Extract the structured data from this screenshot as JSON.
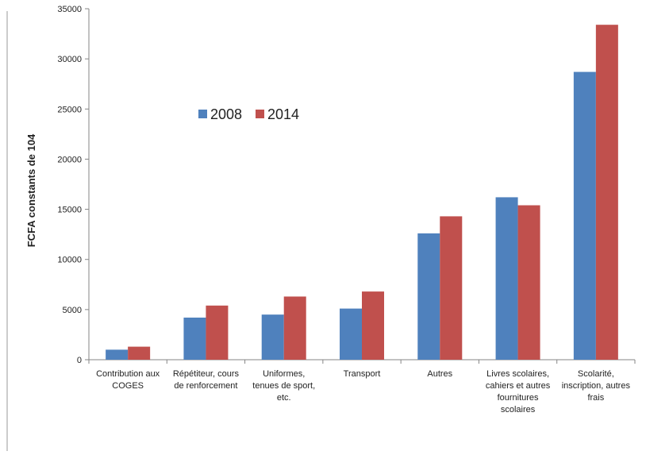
{
  "chart_data": {
    "type": "bar",
    "title": "",
    "xlabel": "",
    "ylabel": "FCFA constants de 104",
    "ylim": [
      0,
      35000
    ],
    "yticks": [
      "0",
      "5000",
      "10000",
      "15000",
      "20000",
      "25000",
      "30000",
      "35000"
    ],
    "categories": [
      [
        "Contribution aux",
        "COGES"
      ],
      [
        "Répétiteur, cours",
        "de renforcement"
      ],
      [
        "Uniformes,",
        "tenues de sport,",
        "etc."
      ],
      [
        "Transport"
      ],
      [
        "Autres"
      ],
      [
        "Livres scolaires,",
        "cahiers et autres",
        "fournitures",
        "scolaires"
      ],
      [
        "Scolarité,",
        "inscription, autres",
        "frais"
      ]
    ],
    "series": [
      {
        "name": "2008",
        "color": "#4F81BD",
        "values": [
          1000,
          4200,
          4500,
          5100,
          12600,
          16200,
          28700
        ]
      },
      {
        "name": "2014",
        "color": "#C0504D",
        "values": [
          1300,
          5400,
          6300,
          6800,
          14300,
          15400,
          33400
        ]
      }
    ],
    "legend": "upper-left inside plot",
    "grid": false
  }
}
